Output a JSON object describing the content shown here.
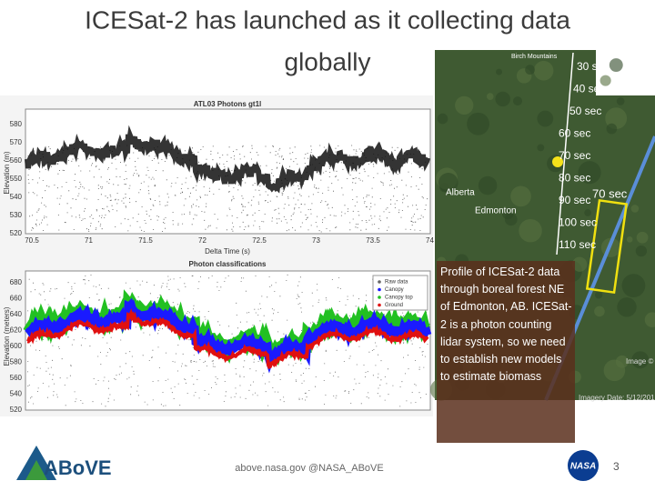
{
  "title": "ICESat-2 has launched as it collecting data globally",
  "top_plot": {
    "title": "ATL03 Photons gt1l",
    "ylabel": "Elevation (m)",
    "xlabel": "Delta Time (s)",
    "yticks": [
      "580",
      "570",
      "560",
      "550",
      "540",
      "530",
      "520"
    ],
    "xticks": [
      "70.5",
      "71",
      "71.5",
      "72",
      "72.5",
      "73",
      "73.5",
      "74"
    ]
  },
  "bottom_plot": {
    "title": "Photon classifications",
    "ylabel": "Elevation (meters)",
    "yticks": [
      "680",
      "660",
      "640",
      "620",
      "600",
      "580",
      "560",
      "540",
      "520"
    ],
    "legend": [
      "Raw data",
      "Canopy",
      "Canopy top",
      "Ground"
    ]
  },
  "map": {
    "labels": [
      "Birch Mountains",
      "Alberta",
      "Edmonton"
    ],
    "times": [
      "30 sec",
      "40 sec",
      "50 sec",
      "60 sec",
      "70 sec",
      "80 sec",
      "90 sec",
      "100 sec",
      "110 sec"
    ],
    "box_label": "70 sec",
    "imagery": "Imagery Date: 5/12/2016",
    "credit": "Image ©"
  },
  "caption": "Profile of ICESat-2 data through boreal forest NE of Edmonton, AB. ICESat-2 is a photon counting lidar system, so we need to establish new models to estimate biomass",
  "footer": {
    "logo": "ABoVE",
    "url": "above.nasa.gov @NASA_ABoVE",
    "nasa": "NASA",
    "page": "3"
  }
}
